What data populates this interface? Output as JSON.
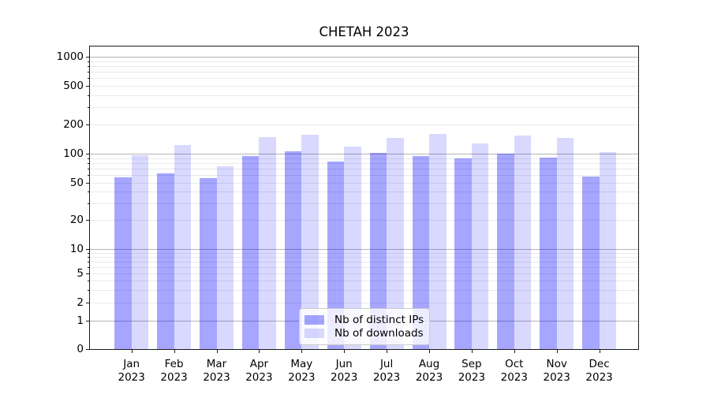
{
  "chart_data": {
    "type": "bar",
    "title": "CHETAH 2023",
    "categories": [
      "Jan",
      "Feb",
      "Mar",
      "Apr",
      "May",
      "Jun",
      "Jul",
      "Aug",
      "Sep",
      "Oct",
      "Nov",
      "Dec"
    ],
    "category_year": "2023",
    "series": [
      {
        "name": "Nb of distinct IPs",
        "color": "rgba(0,0,255,0.35)",
        "values": [
          57,
          63,
          56,
          94,
          105,
          83,
          101,
          95,
          89,
          100,
          91,
          58
        ]
      },
      {
        "name": "Nb of downloads",
        "color": "rgba(0,0,255,0.15)",
        "values": [
          96,
          122,
          74,
          149,
          157,
          119,
          146,
          161,
          127,
          153,
          146,
          103
        ]
      }
    ],
    "yaxis": {
      "scale": "symlog",
      "ticks": [
        0,
        1,
        2,
        5,
        10,
        20,
        50,
        100,
        200,
        500,
        1000
      ]
    },
    "xlabel": "",
    "ylabel": "",
    "grid": true,
    "legend_position": "lower center inside"
  },
  "colors": {
    "major_grid": "#b4b4b4",
    "minor_grid": "#e9e9e9",
    "spine": "#1a1a1a",
    "bar_dark": "rgba(0,0,255,0.35)",
    "bar_light": "rgba(0,0,255,0.15)",
    "legend_border": "#cccccc"
  }
}
